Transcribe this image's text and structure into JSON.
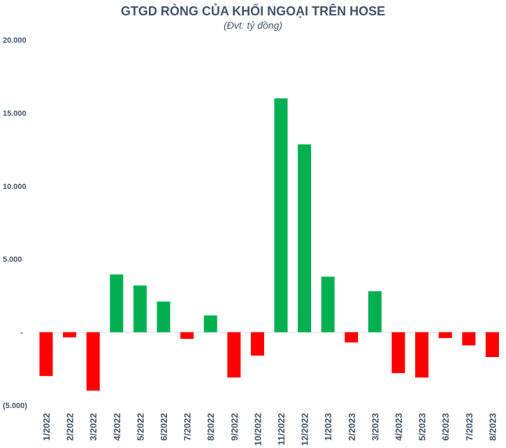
{
  "chart_data": {
    "type": "bar",
    "title": "GTGD RÒNG CỦA KHỐI NGOẠI TRÊN HOSE",
    "subtitle": "(Đvt: tỷ đồng)",
    "xlabel": "",
    "ylabel": "",
    "ylim": [
      -5000,
      20000
    ],
    "yticks": [
      20000,
      15000,
      10000,
      5000,
      0,
      -5000
    ],
    "ytick_labels": [
      "20.000",
      "15.000",
      "10.000",
      "5.000",
      "-",
      "(5.000)"
    ],
    "grid": false,
    "categories": [
      "1/2022",
      "2/2022",
      "3/2022",
      "4/2022",
      "5/2022",
      "6/2022",
      "7/2022",
      "8/2022",
      "9/2022",
      "10/2022",
      "11/2022",
      "12/2022",
      "1/2023",
      "2/2023",
      "3/2023",
      "4/2023",
      "5/2023",
      "6/2023",
      "7/2023",
      "8/2023"
    ],
    "values": [
      -3000,
      -350,
      -4000,
      3950,
      3200,
      2100,
      -450,
      1150,
      -3100,
      -1600,
      16000,
      12850,
      3800,
      -700,
      2800,
      -2800,
      -3100,
      -400,
      -900,
      -1700
    ],
    "positive_color": "#00b050",
    "negative_color": "#ff0000"
  }
}
